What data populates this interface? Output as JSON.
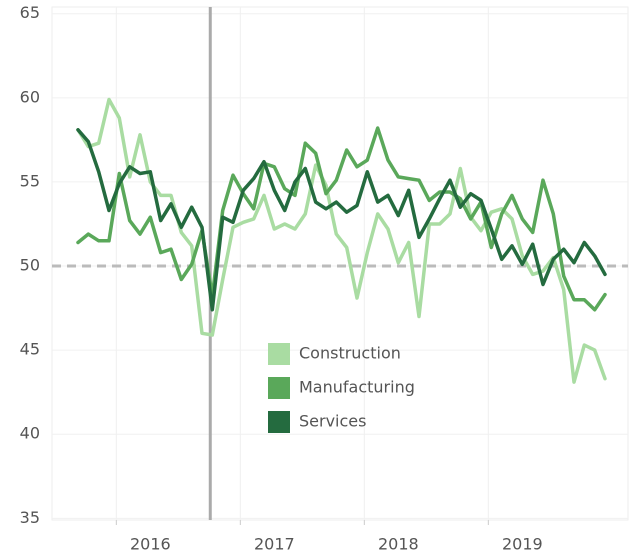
{
  "chart_data": {
    "type": "line",
    "categories": [
      null,
      null,
      null,
      null,
      null,
      null,
      null,
      "2016",
      null,
      null,
      null,
      null,
      null,
      null,
      null,
      null,
      null,
      null,
      null,
      "2017",
      null,
      null,
      null,
      null,
      null,
      null,
      null,
      null,
      null,
      null,
      null,
      "2018",
      null,
      null,
      null,
      null,
      null,
      null,
      null,
      null,
      null,
      null,
      null,
      "2019",
      null,
      null,
      null,
      null,
      null,
      null,
      null,
      null
    ],
    "series": [
      {
        "name": "Construction",
        "color": "#a9dca2",
        "values": [
          58.1,
          57.1,
          57.3,
          59.9,
          58.8,
          55.3,
          57.8,
          55.0,
          54.2,
          54.2,
          52.0,
          51.2,
          46.0,
          45.9,
          49.2,
          52.3,
          52.6,
          52.8,
          54.2,
          52.2,
          52.5,
          52.2,
          53.1,
          56.0,
          54.8,
          51.9,
          51.1,
          48.1,
          50.8,
          53.1,
          52.2,
          50.2,
          51.4,
          47.0,
          52.5,
          52.5,
          53.1,
          55.8,
          52.9,
          52.1,
          53.2,
          53.4,
          52.8,
          50.6,
          49.5,
          49.7,
          50.5,
          48.6,
          43.1,
          45.3,
          45.0,
          43.3
        ]
      },
      {
        "name": "Manufacturing",
        "color": "#5aa85a",
        "values": [
          51.4,
          51.9,
          51.5,
          51.5,
          55.5,
          52.7,
          51.9,
          52.9,
          50.8,
          51.0,
          49.2,
          50.1,
          52.1,
          48.2,
          53.3,
          55.4,
          54.3,
          53.4,
          56.1,
          55.9,
          54.6,
          54.2,
          57.3,
          56.7,
          54.3,
          55.1,
          56.9,
          55.9,
          56.3,
          58.2,
          56.3,
          55.3,
          55.2,
          55.1,
          53.9,
          54.4,
          54.4,
          54.0,
          52.8,
          53.8,
          51.1,
          53.1,
          54.2,
          52.8,
          52.0,
          55.1,
          53.1,
          49.4,
          48.0,
          48.0,
          47.4,
          48.3
        ]
      },
      {
        "name": "Services",
        "color": "#246b3f",
        "values": [
          58.1,
          57.4,
          55.6,
          53.3,
          54.9,
          55.9,
          55.5,
          55.6,
          52.7,
          53.7,
          52.3,
          53.5,
          52.3,
          47.4,
          52.9,
          52.6,
          54.5,
          55.2,
          56.2,
          54.5,
          53.3,
          55.0,
          55.8,
          53.8,
          53.4,
          53.8,
          53.2,
          53.6,
          55.6,
          53.8,
          54.2,
          53.0,
          54.5,
          51.7,
          52.8,
          54.0,
          55.1,
          53.5,
          54.3,
          53.9,
          52.2,
          50.4,
          51.2,
          50.1,
          51.3,
          48.9,
          50.4,
          51.0,
          50.2,
          51.4,
          50.6,
          49.5
        ]
      }
    ],
    "ylim": [
      34.9,
      65.4
    ],
    "yticks": [
      35,
      40,
      45,
      50,
      55,
      60,
      65
    ],
    "grid": true,
    "reference_y": 50,
    "reference_x_index": 12.8
  }
}
